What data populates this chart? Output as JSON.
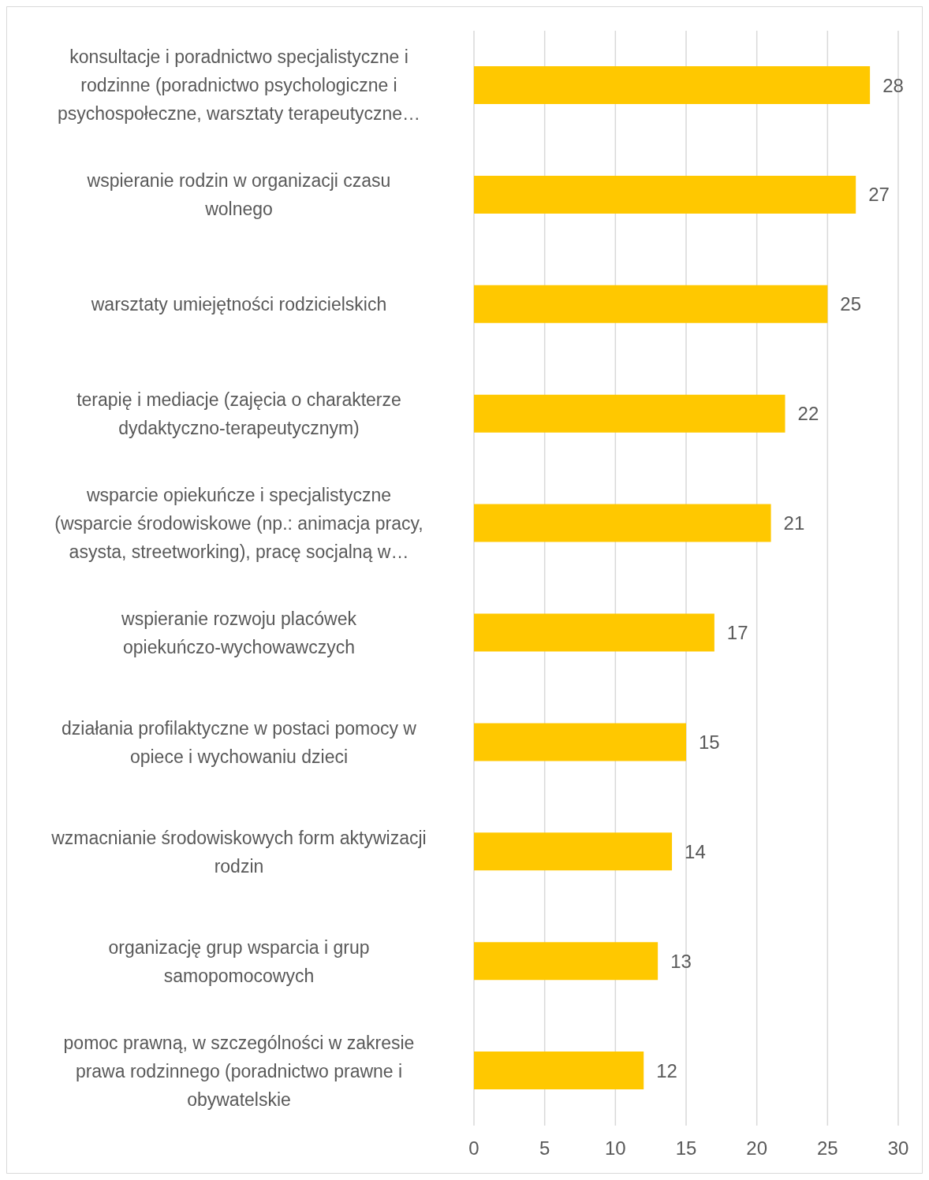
{
  "chart_data": {
    "type": "bar",
    "orientation": "horizontal",
    "categories": [
      "konsultacje i poradnictwo specjalistyczne i rodzinne (poradnictwo psychologiczne i psychospołeczne, warsztaty terapeutyczne…",
      "wspieranie rodzin w organizacji czasu wolnego",
      "warsztaty umiejętności rodzicielskich",
      "terapię i mediacje (zajęcia o charakterze dydaktyczno-terapeutycznym)",
      "wsparcie opiekuńcze i specjalistyczne (wsparcie środowiskowe (np.: animacja pracy, asysta, streetworking), pracę socjalną w…",
      "wspieranie rozwoju placówek opiekuńczo-wychowawczych",
      "działania profilaktyczne w postaci pomocy w opiece i wychowaniu dzieci",
      "wzmacnianie środowiskowych form aktywizacji rodzin",
      "organizację grup wsparcia i grup samopomocowych",
      "pomoc prawną, w szczególności w zakresie prawa rodzinnego (poradnictwo prawne i obywatelskie"
    ],
    "values": [
      28,
      27,
      25,
      22,
      21,
      17,
      15,
      14,
      13,
      12
    ],
    "color": "#ffc800",
    "xlim": [
      0,
      30
    ],
    "xticks": [
      0,
      5,
      10,
      15,
      20,
      25,
      30
    ],
    "grid": "x",
    "data_labels": true,
    "legend": false
  }
}
